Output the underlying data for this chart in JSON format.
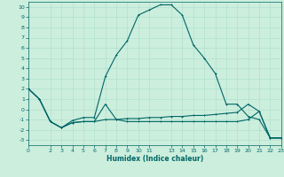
{
  "xlabel": "Humidex (Indice chaleur)",
  "bg_color": "#cceedd",
  "grid_color": "#aaddcc",
  "line_color": "#006666",
  "xlim": [
    0,
    23
  ],
  "ylim": [
    -3.5,
    10.5
  ],
  "xticks": [
    0,
    2,
    3,
    4,
    5,
    6,
    7,
    8,
    9,
    10,
    11,
    13,
    14,
    15,
    16,
    17,
    18,
    19,
    20,
    21,
    22,
    23
  ],
  "yticks": [
    -3,
    -2,
    -1,
    0,
    1,
    2,
    3,
    4,
    5,
    6,
    7,
    8,
    9,
    10
  ],
  "curve1_x": [
    0,
    1,
    2,
    3,
    4,
    5,
    6,
    7,
    8,
    9,
    10,
    11,
    12,
    13,
    14,
    15,
    16,
    17,
    18,
    19,
    20,
    21,
    22,
    23
  ],
  "curve1_y": [
    2,
    1,
    -1.2,
    -1.8,
    -1.1,
    -0.8,
    -0.8,
    3.2,
    5.3,
    6.7,
    9.2,
    9.7,
    10.2,
    10.2,
    9.2,
    6.3,
    5.0,
    3.5,
    0.5,
    0.5,
    -0.7,
    -1.0,
    -2.8,
    -2.8
  ],
  "curve2_x": [
    0,
    1,
    2,
    3,
    4,
    5,
    6,
    7,
    8,
    9,
    10,
    11,
    12,
    13,
    14,
    15,
    16,
    17,
    18,
    19,
    20,
    21,
    22,
    23
  ],
  "curve2_y": [
    2,
    1,
    -1.2,
    -1.8,
    -1.3,
    -1.2,
    -1.2,
    -1.0,
    -1.0,
    -0.9,
    -0.9,
    -0.8,
    -0.8,
    -0.7,
    -0.7,
    -0.6,
    -0.6,
    -0.5,
    -0.4,
    -0.3,
    0.5,
    -0.2,
    -2.8,
    -2.8
  ],
  "curve3_x": [
    0,
    1,
    2,
    3,
    4,
    5,
    6,
    7,
    8,
    9,
    10,
    11,
    12,
    13,
    14,
    15,
    16,
    17,
    18,
    19,
    20,
    21,
    22,
    23
  ],
  "curve3_y": [
    2,
    1,
    -1.2,
    -1.8,
    -1.3,
    -1.2,
    -1.2,
    0.5,
    -1.0,
    -1.2,
    -1.2,
    -1.2,
    -1.2,
    -1.2,
    -1.2,
    -1.2,
    -1.2,
    -1.2,
    -1.2,
    -1.2,
    -1.0,
    -0.2,
    -2.8,
    -2.8
  ]
}
